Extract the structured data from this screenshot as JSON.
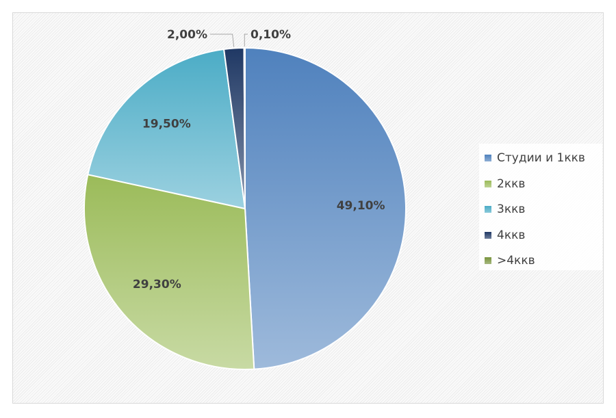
{
  "chart_data": {
    "type": "pie",
    "title": "",
    "start_angle": "12 o'clock, clockwise",
    "legend_position": "right",
    "slices": [
      {
        "label": "Студии и 1ккв",
        "value": 49.1,
        "data_label": "49,10%",
        "color": "#4f81bd"
      },
      {
        "label": "2ккв",
        "value": 29.3,
        "data_label": "29,30%",
        "color": "#9bbb59"
      },
      {
        "label": "3ккв",
        "value": 19.5,
        "data_label": "19,50%",
        "color": "#4bacc6"
      },
      {
        "label": "4ккв",
        "value": 2.0,
        "data_label": "2,00%",
        "color": "#1f3864"
      },
      {
        "label": ">4ккв",
        "value": 0.1,
        "data_label": "0,10%",
        "color": "#77933c"
      }
    ]
  }
}
